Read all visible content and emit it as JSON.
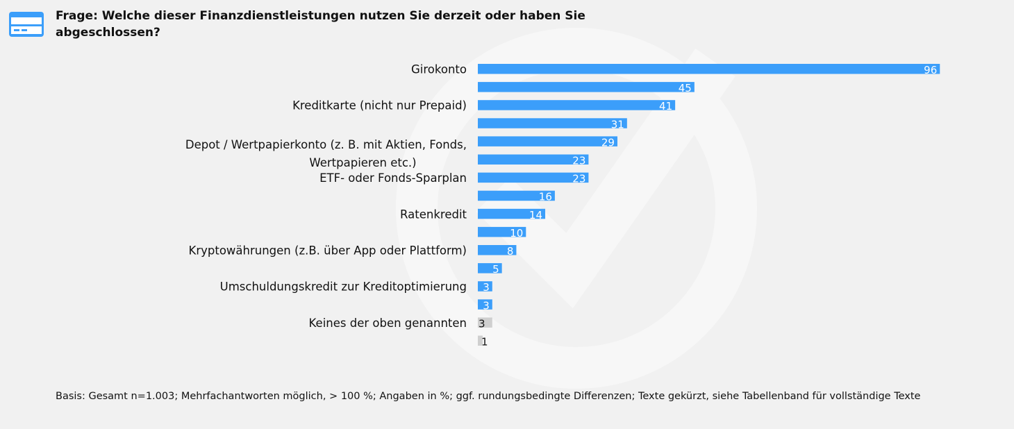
{
  "header": {
    "icon": "credit-card-icon",
    "title": "Frage: Welche dieser Finanzdienstleistungen nutzen Sie derzeit oder haben Sie abgeschlossen?"
  },
  "footnote": "Basis: Gesamt n=1.003; Mehrfachantworten möglich, > 100 %; Angaben in %; ggf. rundungsbedingte Differenzen; Texte gekürzt, siehe Tabellenband für vollständige Texte",
  "colors": {
    "primary_bar": "#3b9efa",
    "other_bar": "#cfcfcf",
    "background": "#f1f1f1"
  },
  "chart_data": {
    "type": "bar",
    "orientation": "horizontal",
    "title": "Frage: Welche dieser Finanzdienstleistungen nutzen Sie derzeit oder haben Sie abgeschlossen?",
    "xlabel": "",
    "ylabel": "",
    "unit": "%",
    "xlim": [
      0,
      100
    ],
    "grid": false,
    "legend": "none",
    "categories": [
      "Girokonto",
      "",
      "Kreditkarte (nicht nur Prepaid)",
      "",
      "Depot / Wertpapierkonto (z. B. mit Aktien, Fonds, Wertpapieren etc.)",
      "",
      "ETF- oder Fonds-Sparplan",
      "",
      "Ratenkredit",
      "",
      "Kryptowährungen (z.B. über App oder Plattform)",
      "",
      "Umschuldungskredit zur Kreditoptimierung",
      "",
      "Keines der oben genannten",
      ""
    ],
    "values": [
      96,
      45,
      41,
      31,
      29,
      23,
      23,
      16,
      14,
      10,
      8,
      5,
      3,
      3,
      3,
      1
    ],
    "bar_kind": [
      "primary",
      "primary",
      "primary",
      "primary",
      "primary",
      "primary",
      "primary",
      "primary",
      "primary",
      "primary",
      "primary",
      "primary",
      "primary",
      "primary",
      "other",
      "other"
    ]
  }
}
